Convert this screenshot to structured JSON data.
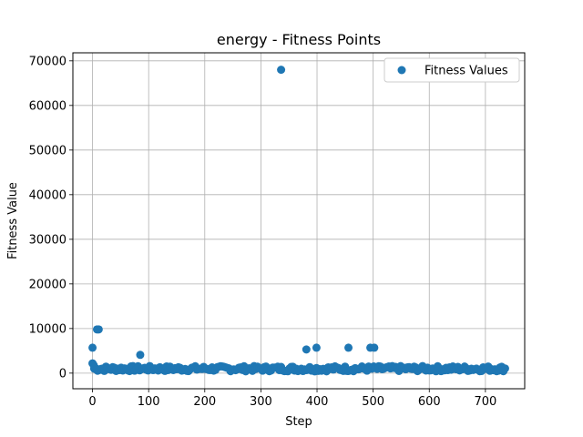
{
  "chart_data": {
    "type": "scatter",
    "title": "energy - Fitness Points",
    "xlabel": "Step",
    "ylabel": "Fitness Value",
    "xlim": [
      -35,
      770
    ],
    "ylim": [
      -3500,
      71800
    ],
    "xticks": [
      0,
      100,
      200,
      300,
      400,
      500,
      600,
      700
    ],
    "yticks": [
      0,
      10000,
      20000,
      30000,
      40000,
      50000,
      60000,
      70000
    ],
    "grid": true,
    "legend": {
      "position": "top-right",
      "entries": [
        "Fitness Values"
      ]
    },
    "color": "#1f77b4",
    "series": [
      {
        "name": "Fitness Values",
        "outliers": [
          {
            "x": 0,
            "y": 5700
          },
          {
            "x": 0,
            "y": 2200
          },
          {
            "x": 2,
            "y": 1800
          },
          {
            "x": 8,
            "y": 9800
          },
          {
            "x": 11,
            "y": 9800
          },
          {
            "x": 85,
            "y": 4100
          },
          {
            "x": 336,
            "y": 68000
          },
          {
            "x": 381,
            "y": 5300
          },
          {
            "x": 399,
            "y": 5700
          },
          {
            "x": 456,
            "y": 5700
          },
          {
            "x": 495,
            "y": 5700
          },
          {
            "x": 502,
            "y": 5700
          }
        ],
        "dense_band": {
          "x_start": 3,
          "x_end": 736,
          "step": 3,
          "y_min": 400,
          "y_max": 1600
        }
      }
    ]
  }
}
